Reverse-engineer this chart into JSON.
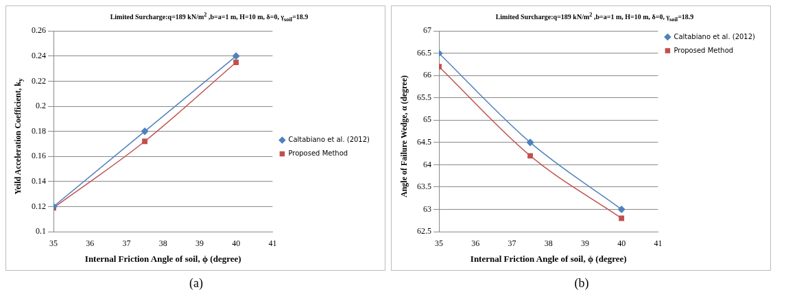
{
  "chart_data": [
    {
      "type": "line",
      "title": "Limited Surcharge:q=189  kN/m$^{2}$ ,b=a=1  m, H=10  m,  δ=0, γ$_{soil}$=18.9",
      "xlabel": "Internal Friction Angle of soil, ϕ (degree)",
      "ylabel": "Yeild  Acceleration Coefficient, k$_{y}$",
      "x": [
        35,
        37.5,
        40
      ],
      "xlim": [
        35,
        41
      ],
      "xticks": [
        35,
        36,
        37,
        38,
        39,
        40,
        41
      ],
      "ylim": [
        0.1,
        0.26
      ],
      "yticks": [
        0.1,
        0.12,
        0.14,
        0.16,
        0.18,
        0.2,
        0.22,
        0.24,
        0.26
      ],
      "grid": "y",
      "legend": "right",
      "line_style": "solid",
      "annotations": [
        "(a)"
      ],
      "series": [
        {
          "name": "Caltabiano et al. (2012)",
          "color": "#4f81bd",
          "marker": "diamond",
          "values": [
            0.12,
            0.18,
            0.24
          ]
        },
        {
          "name": "Proposed Method",
          "color": "#c0504d",
          "marker": "square",
          "values": [
            0.119,
            0.172,
            0.235
          ]
        }
      ]
    },
    {
      "type": "line",
      "title": "Limited Surcharge:q=189  kN/m$^{2}$ ,b=a=1  m, H=10  m,  δ=0, γ$_{soil}$=18.9",
      "xlabel": "Internal Friction Angle of soil, ϕ (degree)",
      "ylabel": "Angle of  Failure Wedge,  α (degree)",
      "x": [
        35,
        37.5,
        40
      ],
      "xlim": [
        35,
        41
      ],
      "xticks": [
        35,
        36,
        37,
        38,
        39,
        40,
        41
      ],
      "ylim": [
        62.5,
        67
      ],
      "yticks": [
        62.5,
        63,
        63.5,
        64,
        64.5,
        65,
        65.5,
        66,
        66.5,
        67
      ],
      "grid": "y",
      "legend": "top right",
      "line_style": "solid",
      "annotations": [
        "(b)"
      ],
      "series": [
        {
          "name": "Caltabiano et al. (2012)",
          "color": "#4f81bd",
          "marker": "diamond",
          "values": [
            66.5,
            64.5,
            63.0
          ]
        },
        {
          "name": "Proposed Method",
          "color": "#c0504d",
          "marker": "square",
          "values": [
            66.2,
            64.2,
            62.8
          ]
        }
      ]
    }
  ]
}
